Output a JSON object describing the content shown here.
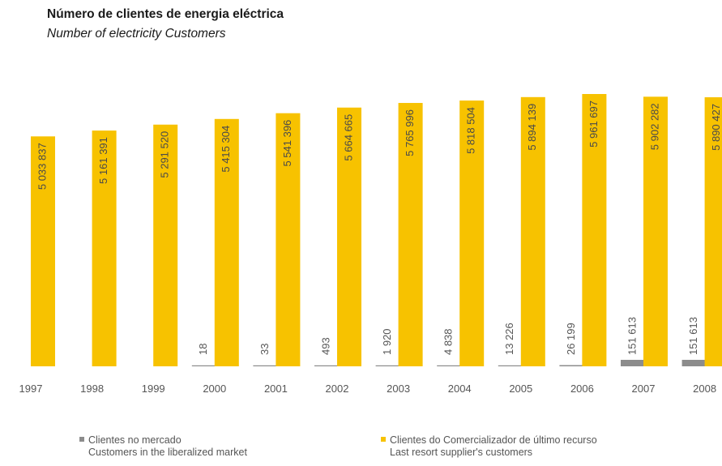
{
  "chart_data": {
    "type": "bar",
    "title": "Número de clientes de energia eléctrica",
    "subtitle": "Number of electricity Customers",
    "categories": [
      "1997",
      "1998",
      "1999",
      "2000",
      "2001",
      "2002",
      "2003",
      "2004",
      "2005",
      "2006",
      "2007",
      "2008"
    ],
    "series": [
      {
        "name": "Clientes no mercado",
        "name_en": "Customers in the liberalized market",
        "color": "#8c8c8c",
        "values": [
          null,
          null,
          null,
          18,
          33,
          493,
          1920,
          4838,
          13226,
          26199,
          151613,
          151613
        ],
        "labels": [
          "",
          "",
          "",
          "18",
          "33",
          "493",
          "1 920",
          "4 838",
          "13 226",
          "26 199",
          "151 613",
          "151 613"
        ]
      },
      {
        "name": "Clientes do Comercializador de último recurso",
        "name_en": "Last resort supplier's customers",
        "color": "#f7c200",
        "values": [
          5033837,
          5161391,
          5291520,
          5415304,
          5541396,
          5664665,
          5765996,
          5818504,
          5894139,
          5961697,
          5902282,
          5890427
        ],
        "labels": [
          "5 033 837",
          "5 161 391",
          "5 291 520",
          "5 415 304",
          "5 541 396",
          "5 664 665",
          "5 765 996",
          "5 818 504",
          "5 894 139",
          "5 961 697",
          "5 902 282",
          "5 890 427"
        ]
      }
    ],
    "ylim": [
      0,
      5961697
    ],
    "grid": false,
    "legend_position": "bottom"
  }
}
